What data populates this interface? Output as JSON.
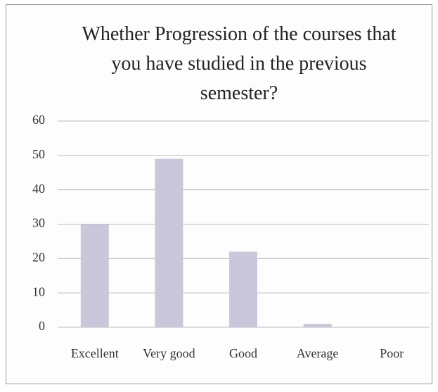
{
  "chart_data": {
    "type": "bar",
    "title": "Whether Progression of the courses that you have studied in the previous semester?",
    "categories": [
      "Excellent",
      "Very good",
      "Good",
      "Average",
      "Poor"
    ],
    "values": [
      30,
      49,
      22,
      1,
      0
    ],
    "color": "#c9c7d9",
    "ylim": [
      0,
      60
    ],
    "yticks": [
      0,
      10,
      20,
      30,
      40,
      50,
      60
    ],
    "grid": true
  }
}
